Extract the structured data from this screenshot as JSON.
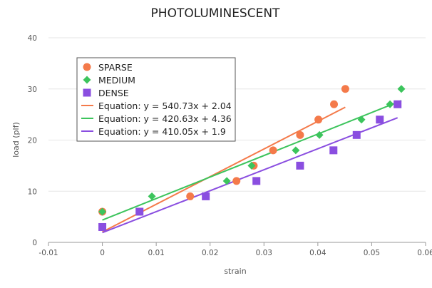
{
  "chart_data": {
    "type": "scatter",
    "title": "PHOTOLUMINESCENT",
    "xlabel": "strain",
    "ylabel": "load (plf)",
    "xlim": [
      -0.01,
      0.06
    ],
    "ylim": [
      0,
      40
    ],
    "x_ticks": [
      -0.01,
      0,
      0.01,
      0.02,
      0.03,
      0.04,
      0.05,
      0.06
    ],
    "x_tick_labels": [
      "-0.01",
      "0",
      "0.01",
      "0.02",
      "0.03",
      "0.04",
      "0.05",
      "0.06"
    ],
    "y_ticks": [
      0,
      10,
      20,
      30,
      40
    ],
    "y_tick_labels": [
      "0",
      "10",
      "20",
      "30",
      "40"
    ],
    "grid": "horizontal",
    "legend_position": "top-left",
    "series": [
      {
        "name": "SPARSE",
        "marker": "circle",
        "color": "#f47a4a",
        "points": [
          [
            0,
            6
          ],
          [
            0.0163,
            9
          ],
          [
            0.0249,
            12
          ],
          [
            0.0281,
            15
          ],
          [
            0.0317,
            18
          ],
          [
            0.0367,
            21
          ],
          [
            0.0401,
            24
          ],
          [
            0.043,
            27
          ],
          [
            0.0451,
            30
          ]
        ]
      },
      {
        "name": "MEDIUM",
        "marker": "diamond",
        "color": "#3cc45c",
        "points": [
          [
            0,
            6
          ],
          [
            0.0092,
            9
          ],
          [
            0.0231,
            12
          ],
          [
            0.0277,
            15
          ],
          [
            0.0359,
            18
          ],
          [
            0.0403,
            21
          ],
          [
            0.0481,
            24
          ],
          [
            0.0534,
            27
          ],
          [
            0.0555,
            30
          ]
        ]
      },
      {
        "name": "DENSE",
        "marker": "square",
        "color": "#8a4ee0",
        "points": [
          [
            0,
            3
          ],
          [
            0.0069,
            6
          ],
          [
            0.0192,
            9
          ],
          [
            0.0286,
            12
          ],
          [
            0.0367,
            15
          ],
          [
            0.0429,
            18
          ],
          [
            0.0472,
            21
          ],
          [
            0.0515,
            24
          ],
          [
            0.0548,
            27
          ]
        ]
      }
    ],
    "trendlines": [
      {
        "name": "Equation: y = 540.73x + 2.04",
        "color": "#f47a4a",
        "slope": 540.73,
        "intercept": 2.04,
        "x_range": [
          0,
          0.0451
        ]
      },
      {
        "name": "Equation: y = 420.63x + 4.36",
        "color": "#3cc45c",
        "slope": 420.63,
        "intercept": 4.36,
        "x_range": [
          0,
          0.0555
        ]
      },
      {
        "name": "Equation: y = 410.05x + 1.9",
        "color": "#8a4ee0",
        "slope": 410.05,
        "intercept": 1.9,
        "x_range": [
          0,
          0.0548
        ]
      }
    ]
  }
}
